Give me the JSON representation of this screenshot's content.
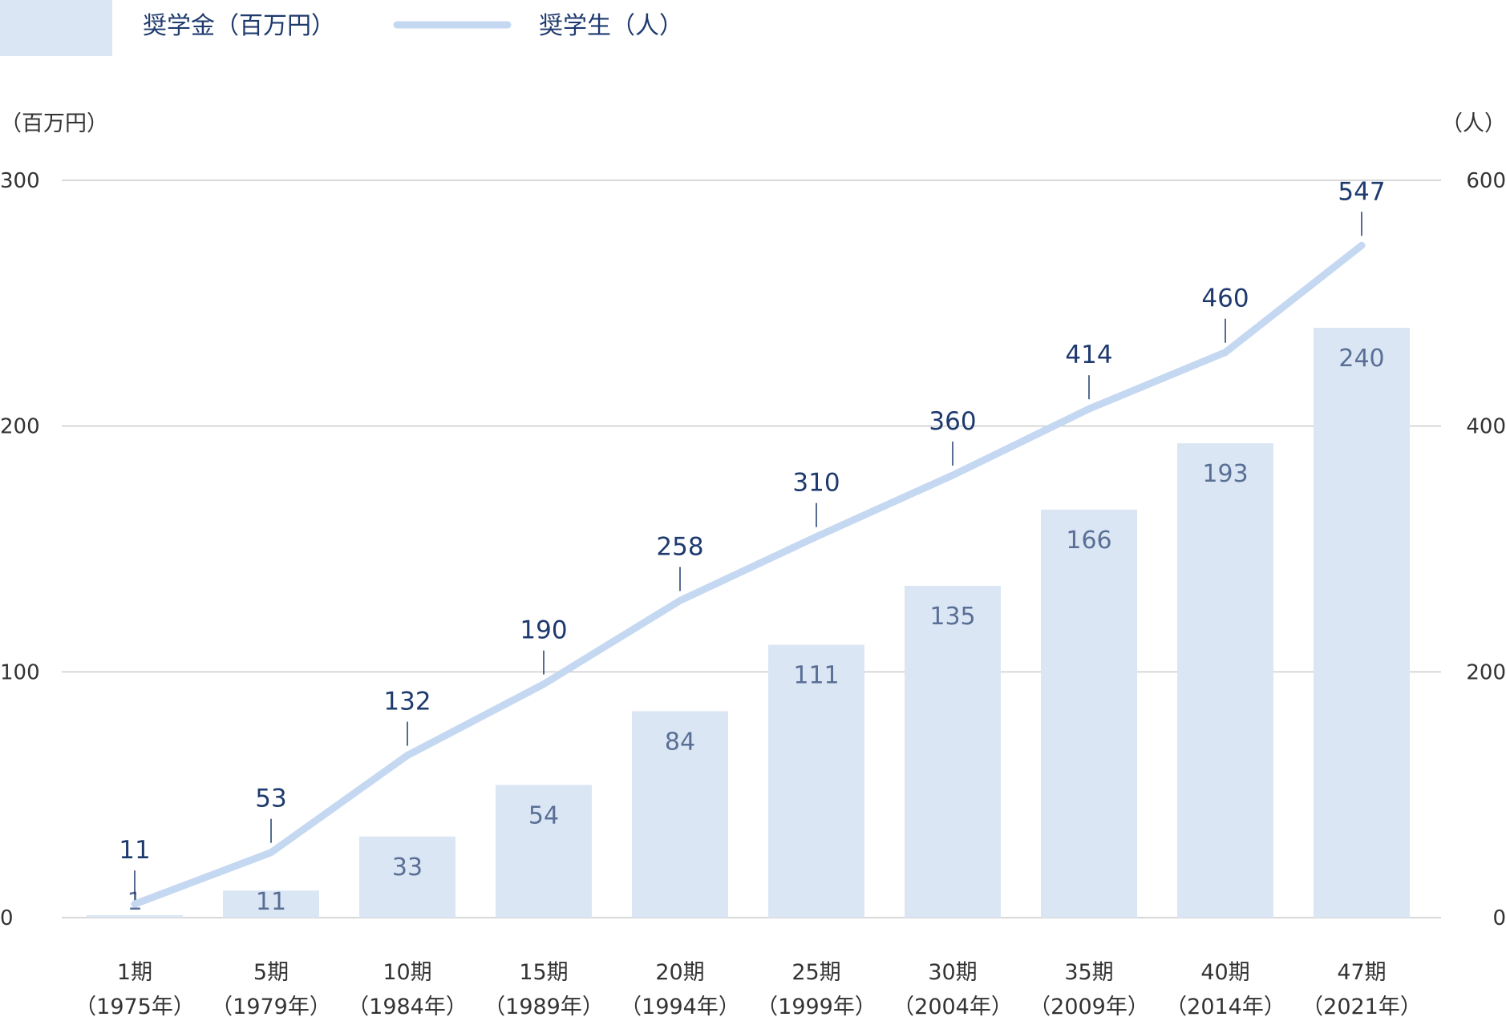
{
  "chart_data": {
    "type": "bar",
    "title": "",
    "legend": {
      "placement": "top-left",
      "bar_label": "奨学金（百万円）",
      "line_label": "奨学生（人）"
    },
    "left_axis": {
      "unit_label": "（百万円）",
      "ylim": [
        0,
        300
      ],
      "ticks": [
        "0",
        "100",
        "200",
        "300"
      ]
    },
    "right_axis": {
      "unit_label": "（人）",
      "ylim": [
        0,
        600
      ],
      "ticks": [
        "0",
        "200",
        "400",
        "600"
      ]
    },
    "grid": true,
    "categories": [
      {
        "period": "1期",
        "year": "（1975年）"
      },
      {
        "period": "5期",
        "year": "（1979年）"
      },
      {
        "period": "10期",
        "year": "（1984年）"
      },
      {
        "period": "15期",
        "year": "（1989年）"
      },
      {
        "period": "20期",
        "year": "（1994年）"
      },
      {
        "period": "25期",
        "year": "（1999年）"
      },
      {
        "period": "30期",
        "year": "（2004年）"
      },
      {
        "period": "35期",
        "year": "（2009年）"
      },
      {
        "period": "40期",
        "year": "（2014年）"
      },
      {
        "period": "47期",
        "year": "（2021年）"
      }
    ],
    "series": [
      {
        "name": "奨学金（百万円）",
        "type": "bar",
        "axis": "left",
        "values": [
          1,
          11,
          33,
          54,
          84,
          111,
          135,
          166,
          193,
          240
        ]
      },
      {
        "name": "奨学生（人）",
        "type": "line",
        "axis": "right",
        "values": [
          11,
          53,
          132,
          190,
          258,
          310,
          360,
          414,
          460,
          547
        ]
      }
    ],
    "colors": {
      "bar": "#dbe6f5",
      "line": "#c5d8f2",
      "line_label": "#1e3a6e",
      "bar_label": "#5a6f95",
      "grid": "#cccccc"
    }
  }
}
